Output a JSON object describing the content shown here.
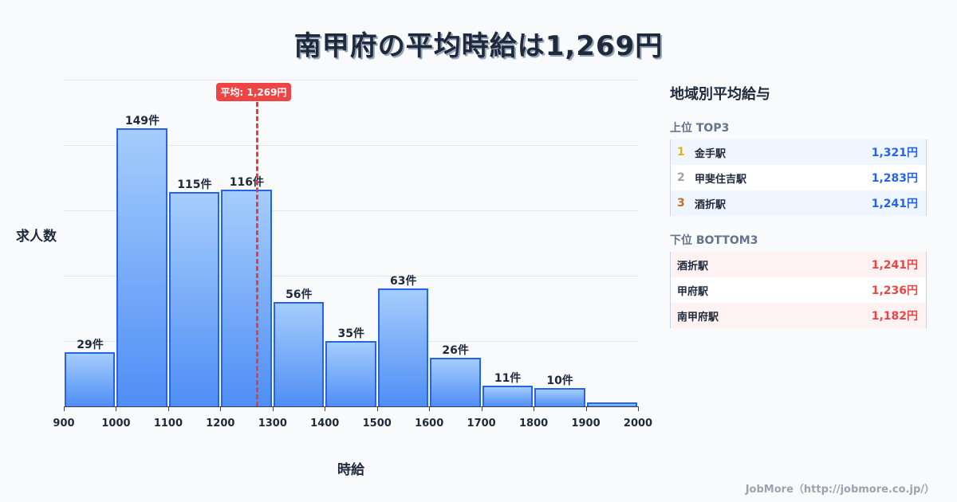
{
  "title": "南甲府の平均時給は1,269円",
  "chart_data": {
    "type": "bar",
    "title": "南甲府の平均時給は1,269円",
    "xlabel": "時給",
    "ylabel": "求人数",
    "bins": [
      "900-1000",
      "1000-1100",
      "1100-1200",
      "1200-1300",
      "1300-1400",
      "1400-1500",
      "1500-1600",
      "1600-1700",
      "1700-1800",
      "1800-1900",
      "1900-2000"
    ],
    "x_ticks": [
      "900",
      "1000",
      "1100",
      "1200",
      "1300",
      "1400",
      "1500",
      "1600",
      "1700",
      "1800",
      "1900",
      "2000"
    ],
    "values": [
      29,
      149,
      115,
      116,
      56,
      35,
      63,
      26,
      11,
      10,
      2
    ],
    "labels": [
      "29件",
      "149件",
      "115件",
      "116件",
      "56件",
      "35件",
      "63件",
      "26件",
      "11件",
      "10件",
      ""
    ],
    "ylim": [
      0,
      175
    ],
    "grid": true,
    "average": {
      "value": 1269,
      "label": "平均: 1,269円"
    }
  },
  "panel": {
    "title": "地域別平均給与",
    "top_title": "上位 TOP3",
    "top": [
      {
        "rank": "1",
        "name": "金手駅",
        "value": "1,321円",
        "color": "#eab308"
      },
      {
        "rank": "2",
        "name": "甲斐住吉駅",
        "value": "1,283円",
        "color": "#9ca3af"
      },
      {
        "rank": "3",
        "name": "酒折駅",
        "value": "1,241円",
        "color": "#c2702a"
      }
    ],
    "bottom_title": "下位 BOTTOM3",
    "bottom": [
      {
        "name": "酒折駅",
        "value": "1,241円"
      },
      {
        "name": "甲府駅",
        "value": "1,236円"
      },
      {
        "name": "南甲府駅",
        "value": "1,182円"
      }
    ]
  },
  "footer": "JobMore（http://jobmore.co.jp/）"
}
